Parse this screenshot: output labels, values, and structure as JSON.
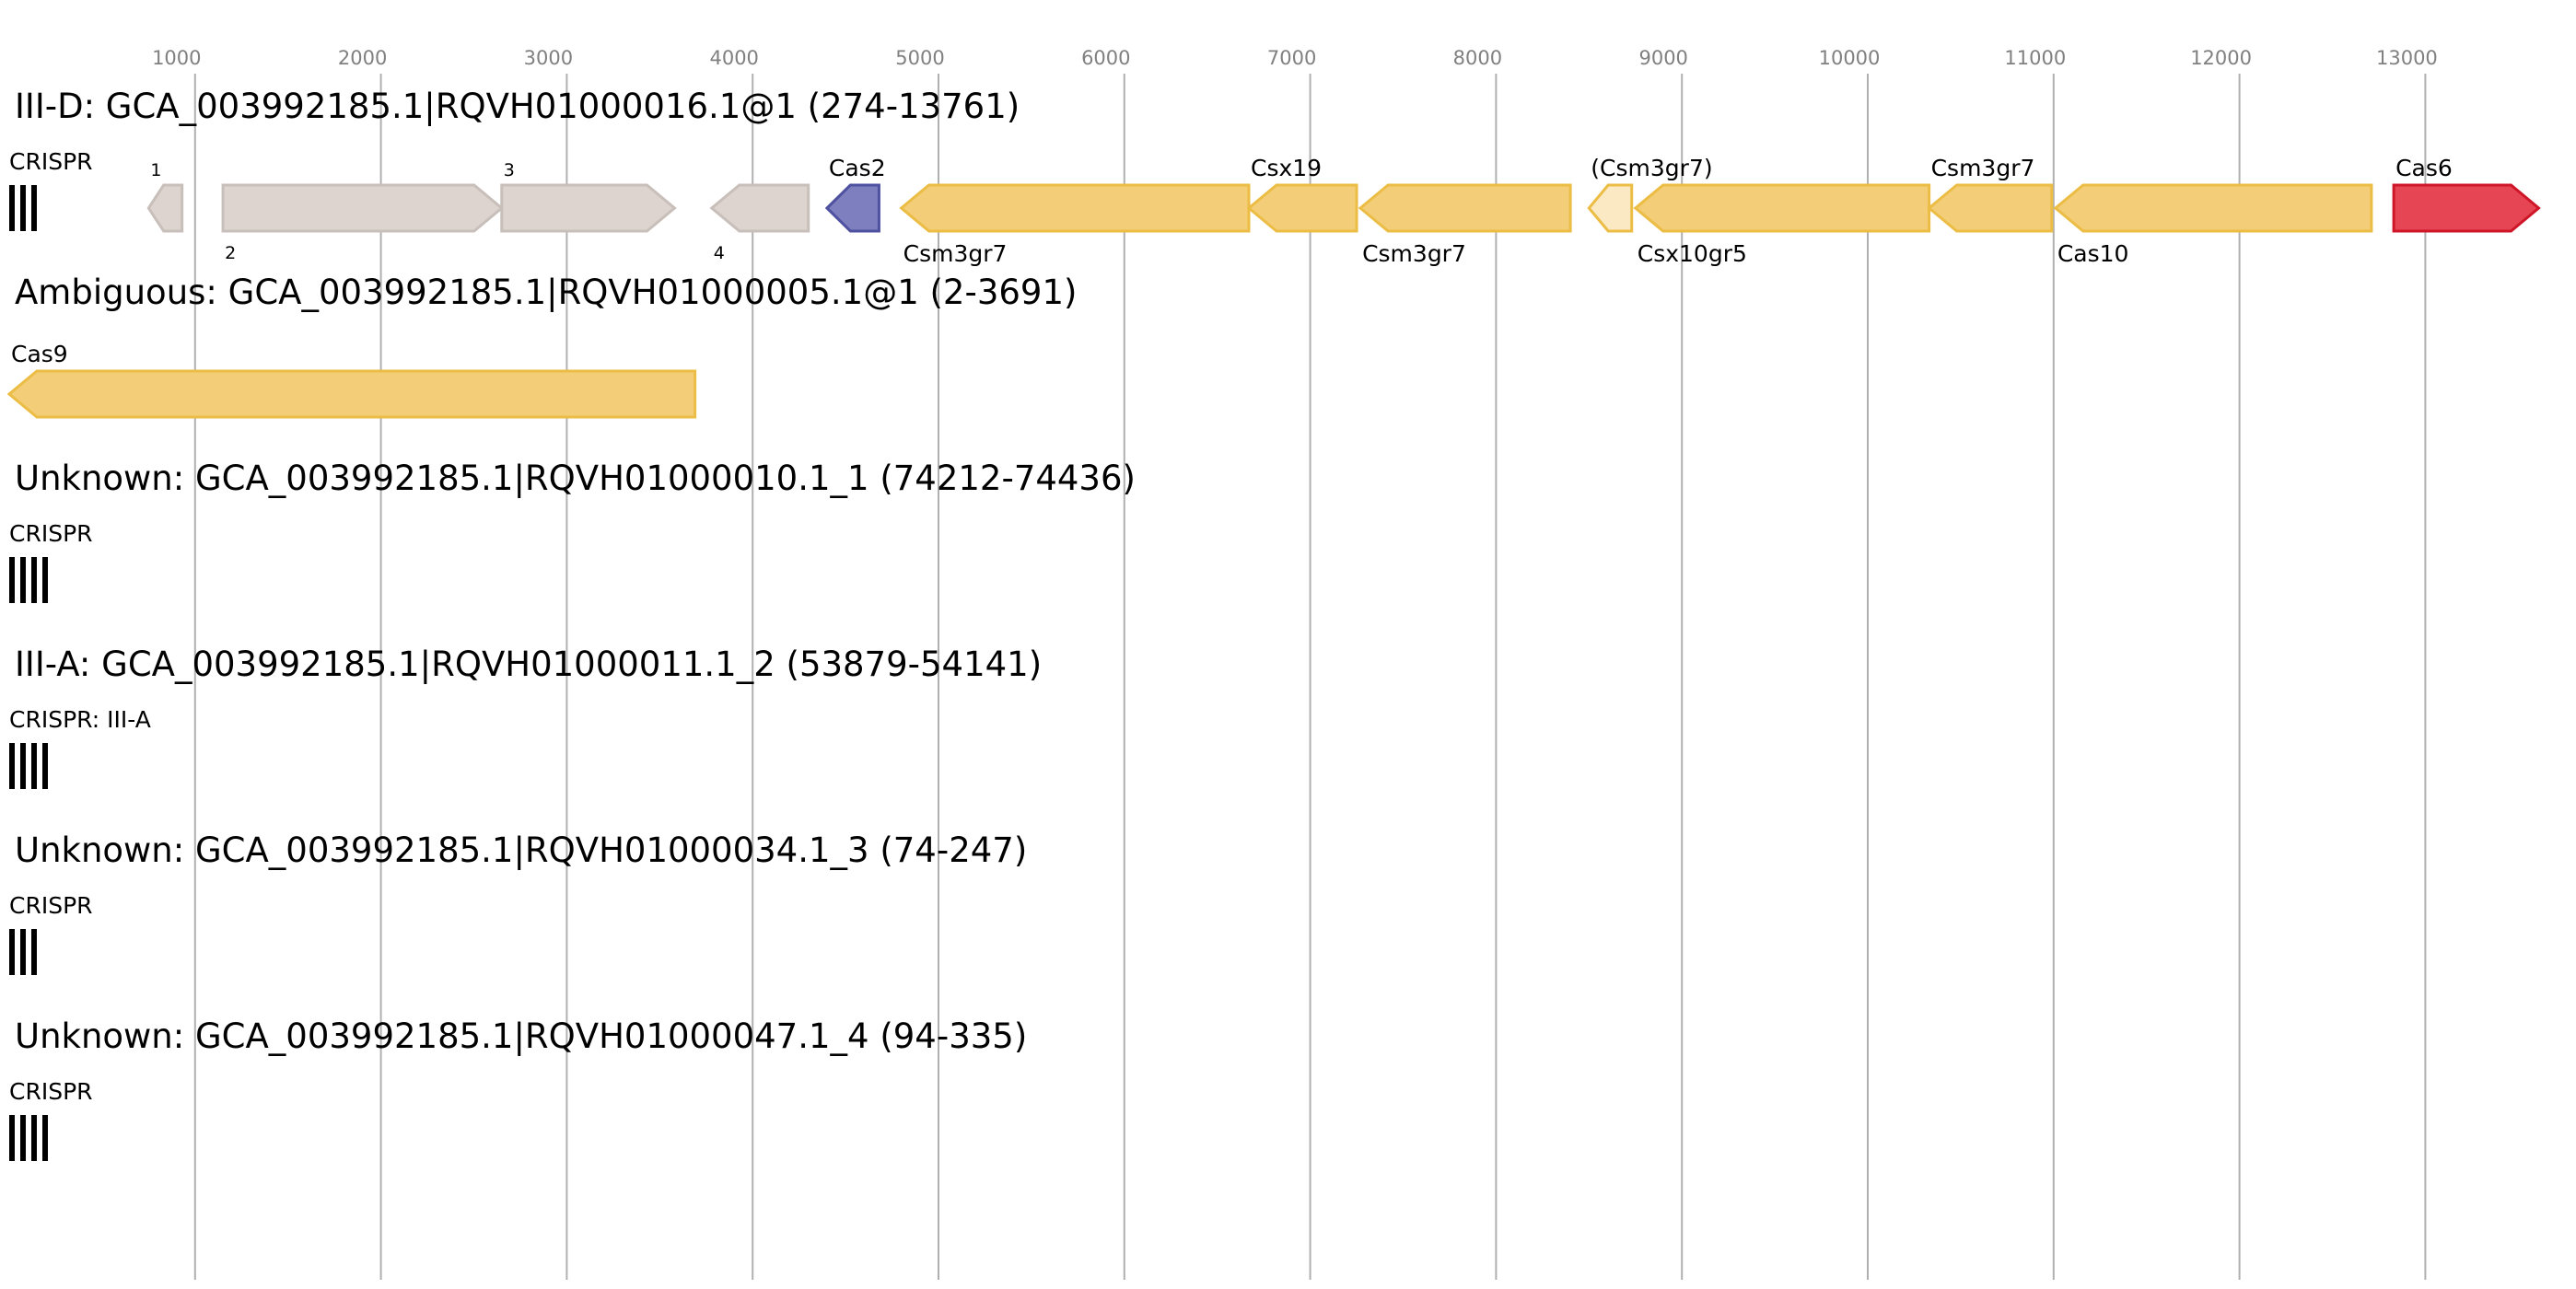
{
  "axis": {
    "ticks": [
      1000,
      2000,
      3000,
      4000,
      5000,
      6000,
      7000,
      8000,
      9000,
      10000,
      11000,
      12000,
      13000
    ]
  },
  "colors": {
    "grey": "#ddd4cf",
    "grey_stroke": "#c8bfba",
    "yellow": "#f3cd77",
    "yellow_stroke": "#ecbd45",
    "yellow_light": "#fbe9c4",
    "blue": "#7d7fbe",
    "blue_stroke": "#4e519f",
    "red": "#e64553",
    "red_stroke": "#cf1628",
    "crispr": "#000000"
  },
  "tracks": [
    {
      "title": "III-D: GCA_003992185.1|RQVH01000016.1@1 (274-13761)",
      "crispr": {
        "label": "CRISPR",
        "bars": 3
      },
      "genes": [
        {
          "start": 750,
          "end": 930,
          "strand": -1,
          "color": "grey",
          "label": "1",
          "small": true,
          "pos": "top"
        },
        {
          "start": 1150,
          "end": 2650,
          "strand": 1,
          "color": "grey",
          "label": "2",
          "small": true,
          "pos": "bottom"
        },
        {
          "start": 2650,
          "end": 3580,
          "strand": 1,
          "color": "grey",
          "label": "3",
          "small": true,
          "pos": "top"
        },
        {
          "start": 3780,
          "end": 4300,
          "strand": -1,
          "color": "grey",
          "label": "4",
          "small": true,
          "pos": "bottom"
        },
        {
          "start": 4400,
          "end": 4680,
          "strand": -1,
          "color": "blue",
          "label": "Cas2",
          "pos": "top"
        },
        {
          "start": 4800,
          "end": 6670,
          "strand": -1,
          "color": "yellow",
          "label": "Csm3gr7",
          "pos": "bottom"
        },
        {
          "start": 6670,
          "end": 7250,
          "strand": -1,
          "color": "yellow",
          "label": "Csx19",
          "pos": "top"
        },
        {
          "start": 7270,
          "end": 8400,
          "strand": -1,
          "color": "yellow",
          "label": "Csm3gr7",
          "pos": "bottom"
        },
        {
          "start": 8500,
          "end": 8730,
          "strand": -1,
          "color": "yellow_light",
          "label": "(Csm3gr7)",
          "pos": "top"
        },
        {
          "start": 8750,
          "end": 10330,
          "strand": -1,
          "color": "yellow",
          "label": "Csx10gr5",
          "pos": "bottom"
        },
        {
          "start": 10330,
          "end": 10990,
          "strand": -1,
          "color": "yellow",
          "label": "Csm3gr7",
          "pos": "top"
        },
        {
          "start": 11010,
          "end": 12710,
          "strand": 1,
          "color": "yellow",
          "label": "Cas10",
          "pos": "bottom",
          "strand_flip": -1
        },
        {
          "start": 12830,
          "end": 13610,
          "strand": 1,
          "color": "red",
          "label": "Cas6",
          "pos": "top"
        }
      ]
    },
    {
      "title": "Ambiguous: GCA_003992185.1|RQVH01000005.1@1 (2-3691)",
      "genes": [
        {
          "start": 0,
          "end": 3690,
          "strand": -1,
          "color": "yellow",
          "label": "Cas9",
          "pos": "top"
        }
      ]
    },
    {
      "title": "Unknown: GCA_003992185.1|RQVH01000010.1_1 (74212-74436)",
      "crispr": {
        "label": "CRISPR",
        "bars": 4
      },
      "genes": []
    },
    {
      "title": "III-A: GCA_003992185.1|RQVH01000011.1_2 (53879-54141)",
      "crispr": {
        "label": "CRISPR: III-A",
        "bars": 4
      },
      "genes": []
    },
    {
      "title": "Unknown: GCA_003992185.1|RQVH01000034.1_3 (74-247)",
      "crispr": {
        "label": "CRISPR",
        "bars": 3
      },
      "genes": []
    },
    {
      "title": "Unknown: GCA_003992185.1|RQVH01000047.1_4 (94-335)",
      "crispr": {
        "label": "CRISPR",
        "bars": 4
      },
      "genes": []
    }
  ]
}
